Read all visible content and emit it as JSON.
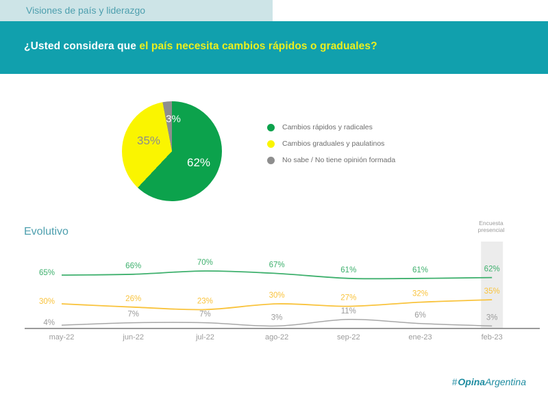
{
  "header": {
    "section_label": "Visiones de país y liderazgo"
  },
  "banner": {
    "question_prefix": "¿Usted considera que ",
    "question_highlight": "el país necesita cambios rápidos o graduales?"
  },
  "footer": {
    "hash": "#",
    "brand_bold": "Opina",
    "brand_light": "Argentina"
  },
  "colors": {
    "top_band_bg": "#cde4e7",
    "banner_bg": "#11a0ad",
    "teal_text": "#4d9fae",
    "question_highlight": "#ebef1e",
    "logo_teal": "#1e8ca0"
  },
  "chart_data": [
    {
      "type": "pie",
      "title": "¿Usted considera que el país necesita cambios rápidos o graduales?",
      "labels": [
        "Cambios rápidos y radicales",
        "Cambios graduales y paulatinos",
        "No sabe / No tiene opinión formada"
      ],
      "values": [
        62,
        35,
        3
      ],
      "data_labels": [
        "62%",
        "35%",
        "3%"
      ],
      "colors": [
        "#0ca24c",
        "#faf500",
        "#8e8e8e"
      ],
      "legend_position": "right",
      "start_angle": "top",
      "direction": "clockwise"
    },
    {
      "type": "line",
      "title": "Evolutivo",
      "categories": [
        "may-22",
        "jun-22",
        "jul-22",
        "ago-22",
        "sep-22",
        "ene-23",
        "feb-23"
      ],
      "series": [
        {
          "name": "Cambios rápidos y radicales",
          "color": "#3eb06d",
          "label_color": "#3eb06d",
          "values": [
            65,
            66,
            70,
            67,
            61,
            61,
            62
          ]
        },
        {
          "name": "Cambios graduales y paulatinos",
          "color": "#f9c33c",
          "label_color": "#f9c33c",
          "values": [
            30,
            26,
            23,
            30,
            27,
            32,
            35
          ]
        },
        {
          "name": "No sabe / No tiene opinión formada",
          "color": "#a8a8a8",
          "label_color": "#9b9b9b",
          "values": [
            4,
            7,
            7,
            3,
            11,
            6,
            3
          ]
        }
      ],
      "annotation": {
        "text": "Encuesta presencial",
        "line1": "Encuesta",
        "line2": "presencial",
        "category": "feb-23",
        "band_color": "#ececec"
      },
      "axis_color": "#9a9a9a",
      "tick_color": "#9b9b9b",
      "ylim": [
        0,
        100
      ],
      "grid": false,
      "data_label_suffix": "%"
    }
  ]
}
